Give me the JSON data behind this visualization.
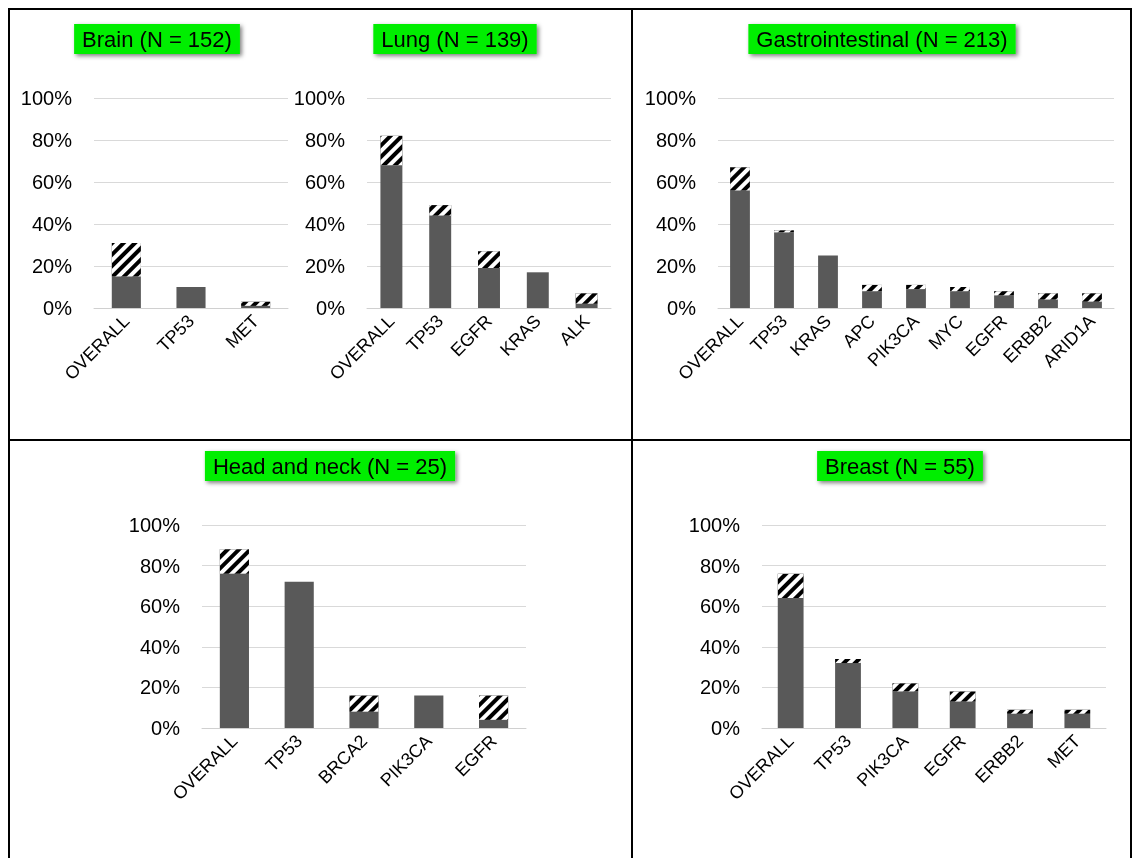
{
  "chart_data": [
    {
      "type": "bar",
      "title": "Brain (N = 152)",
      "categories": [
        "OVERALL",
        "TP53",
        "MET"
      ],
      "stacked": true,
      "grid": "y",
      "ylim": [
        0,
        100
      ],
      "yticks": [
        {
          "value": 0,
          "label": "0%"
        },
        {
          "value": 20,
          "label": "20%"
        },
        {
          "value": 40,
          "label": "40%"
        },
        {
          "value": 60,
          "label": "60%"
        },
        {
          "value": 80,
          "label": "80%"
        },
        {
          "value": 100,
          "label": "100%"
        }
      ],
      "series": [
        {
          "color": "#595959",
          "values": [
            15,
            10,
            1
          ]
        },
        {
          "color": "#000000",
          "values": [
            16,
            0,
            2
          ]
        }
      ]
    },
    {
      "type": "bar",
      "title": "Lung (N = 139)",
      "categories": [
        "OVERALL",
        "TP53",
        "EGFR",
        "KRAS",
        "ALK"
      ],
      "stacked": true,
      "grid": "y",
      "ylim": [
        0,
        100
      ],
      "yticks": [
        {
          "value": 0,
          "label": "0%"
        },
        {
          "value": 20,
          "label": "20%"
        },
        {
          "value": 40,
          "label": "40%"
        },
        {
          "value": 60,
          "label": "60%"
        },
        {
          "value": 80,
          "label": "80%"
        },
        {
          "value": 100,
          "label": "100%"
        }
      ],
      "series": [
        {
          "color": "#595959",
          "values": [
            68,
            44,
            19,
            17,
            2
          ]
        },
        {
          "color": "#000000",
          "values": [
            14,
            5,
            8,
            0,
            5
          ]
        }
      ]
    },
    {
      "type": "bar",
      "title": "Gastrointestinal (N = 213)",
      "categories": [
        "OVERALL",
        "TP53",
        "KRAS",
        "APC",
        "PIK3CA",
        "MYC",
        "EGFR",
        "ERBB2",
        "ARID1A"
      ],
      "stacked": true,
      "grid": "y",
      "ylim": [
        0,
        100
      ],
      "yticks": [
        {
          "value": 0,
          "label": "0%"
        },
        {
          "value": 20,
          "label": "20%"
        },
        {
          "value": 40,
          "label": "40%"
        },
        {
          "value": 60,
          "label": "60%"
        },
        {
          "value": 80,
          "label": "80%"
        },
        {
          "value": 100,
          "label": "100%"
        }
      ],
      "series": [
        {
          "color": "#595959",
          "values": [
            56,
            36,
            25,
            8,
            9,
            8,
            6,
            4,
            3
          ]
        },
        {
          "color": "#000000",
          "values": [
            11,
            1,
            0,
            3,
            2,
            2,
            2,
            3,
            4
          ]
        }
      ]
    },
    {
      "type": "bar",
      "title": "Head and neck (N = 25)",
      "categories": [
        "OVERALL",
        "TP53",
        "BRCA2",
        "PIK3CA",
        "EGFR"
      ],
      "stacked": true,
      "grid": "y",
      "ylim": [
        0,
        100
      ],
      "yticks": [
        {
          "value": 0,
          "label": "0%"
        },
        {
          "value": 20,
          "label": "20%"
        },
        {
          "value": 40,
          "label": "40%"
        },
        {
          "value": 60,
          "label": "60%"
        },
        {
          "value": 80,
          "label": "80%"
        },
        {
          "value": 100,
          "label": "100%"
        }
      ],
      "series": [
        {
          "color": "#595959",
          "values": [
            76,
            72,
            8,
            16,
            4
          ]
        },
        {
          "color": "#000000",
          "values": [
            12,
            0,
            8,
            0,
            12
          ]
        }
      ]
    },
    {
      "type": "bar",
      "title": "Breast (N = 55)",
      "categories": [
        "OVERALL",
        "TP53",
        "PIK3CA",
        "EGFR",
        "ERBB2",
        "MET"
      ],
      "stacked": true,
      "grid": "y",
      "ylim": [
        0,
        100
      ],
      "yticks": [
        {
          "value": 0,
          "label": "0%"
        },
        {
          "value": 20,
          "label": "20%"
        },
        {
          "value": 40,
          "label": "40%"
        },
        {
          "value": 60,
          "label": "60%"
        },
        {
          "value": 80,
          "label": "80%"
        },
        {
          "value": 100,
          "label": "100%"
        }
      ],
      "series": [
        {
          "color": "#595959",
          "values": [
            64,
            32,
            18,
            13,
            7,
            7
          ]
        },
        {
          "color": "#000000",
          "values": [
            12,
            2,
            4,
            5,
            2,
            2
          ]
        }
      ]
    }
  ]
}
